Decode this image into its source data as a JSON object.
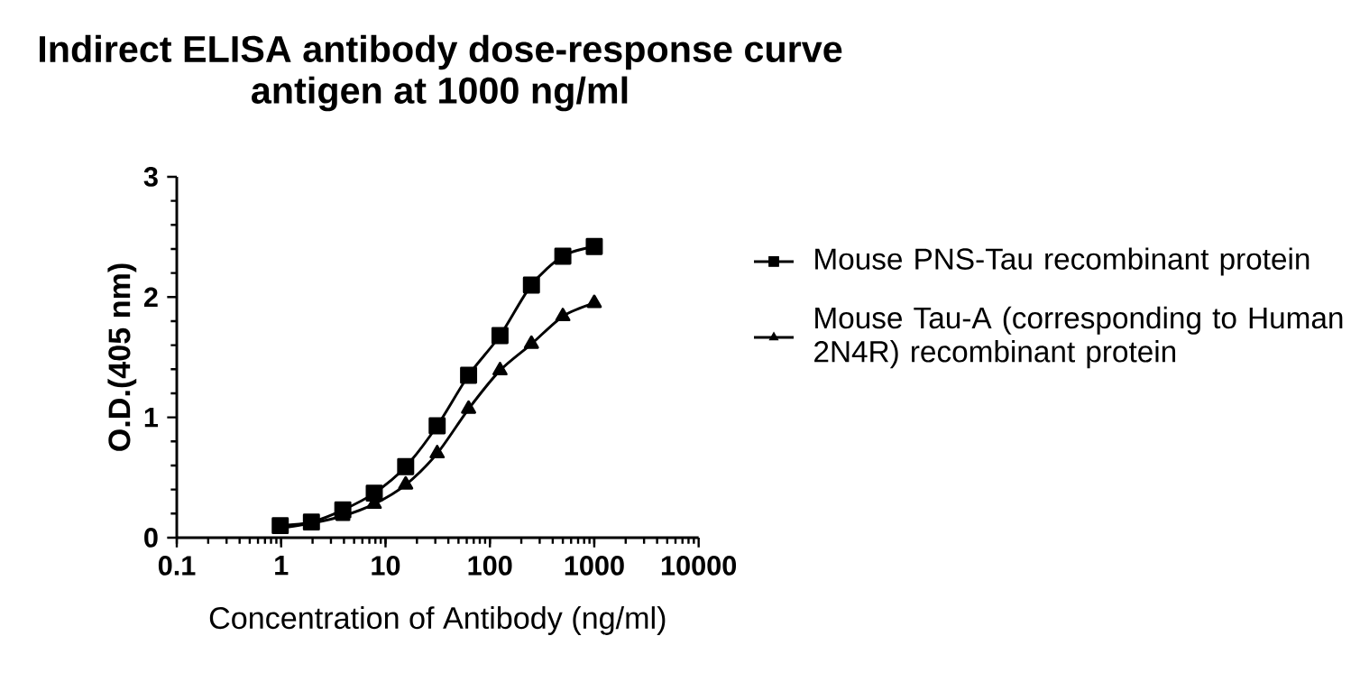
{
  "chart_data": {
    "type": "line",
    "title": "Indirect ELISA antibody dose-response curve",
    "subtitle": "antigen at 1000 ng/ml",
    "xlabel": "Concentration of Antibody (ng/ml)",
    "ylabel": "O.D.(405 nm)",
    "x": [
      0.98,
      1.95,
      3.9,
      7.8,
      15.6,
      31.25,
      62.5,
      125,
      250,
      500,
      1000
    ],
    "series": [
      {
        "name": "Mouse PNS-Tau recombinant protein",
        "color": "#000000",
        "marker": "square",
        "values": [
          0.1,
          0.13,
          0.23,
          0.37,
          0.59,
          0.93,
          1.35,
          1.68,
          2.1,
          2.34,
          2.42
        ]
      },
      {
        "name": "Mouse Tau-A (corresponding to Human 2N4R) recombinant protein",
        "color": "#000000",
        "marker": "triangle",
        "values": [
          0.08,
          0.12,
          0.18,
          0.28,
          0.44,
          0.7,
          1.07,
          1.39,
          1.61,
          1.84,
          1.95
        ]
      }
    ],
    "log": "x",
    "xlim": [
      0.1,
      10000
    ],
    "xticks": [
      0.1,
      1,
      10,
      100,
      1000,
      10000
    ],
    "ylim": [
      0,
      3
    ],
    "yticks": [
      0,
      1,
      2,
      3
    ],
    "grid": false,
    "legend": "right",
    "line_style": "solid"
  }
}
